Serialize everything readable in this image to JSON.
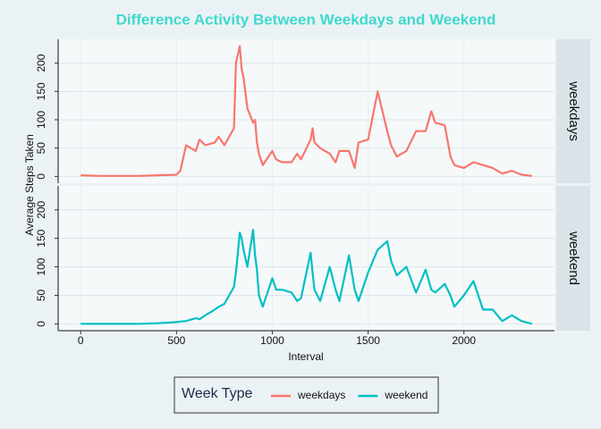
{
  "chart_data": {
    "type": "line",
    "title": "Difference Activity Between Weekdays and Weekend",
    "x_label": "Interval",
    "y_label": "Average Steps Taken",
    "legend_title": "Week Type",
    "facet": true,
    "grid": true,
    "x": [
      0,
      100,
      200,
      300,
      400,
      500,
      520,
      550,
      600,
      620,
      650,
      700,
      720,
      750,
      800,
      810,
      830,
      840,
      850,
      870,
      900,
      910,
      920,
      930,
      950,
      1000,
      1020,
      1050,
      1100,
      1130,
      1150,
      1200,
      1210,
      1220,
      1250,
      1300,
      1330,
      1350,
      1400,
      1430,
      1450,
      1500,
      1550,
      1600,
      1620,
      1650,
      1700,
      1750,
      1800,
      1830,
      1850,
      1900,
      1930,
      1950,
      2000,
      2050,
      2100,
      2150,
      2200,
      2250,
      2300,
      2355
    ],
    "series": [
      {
        "name": "weekdays",
        "color": "#F8766D",
        "values": [
          2,
          1,
          1,
          1,
          2,
          3,
          10,
          55,
          45,
          65,
          55,
          60,
          70,
          55,
          85,
          200,
          230,
          190,
          175,
          120,
          95,
          100,
          60,
          40,
          20,
          45,
          30,
          25,
          25,
          40,
          30,
          65,
          85,
          60,
          50,
          40,
          25,
          45,
          45,
          15,
          60,
          65,
          150,
          80,
          55,
          35,
          45,
          80,
          80,
          115,
          95,
          90,
          35,
          20,
          15,
          25,
          20,
          15,
          5,
          10,
          3,
          1
        ]
      },
      {
        "name": "weekend",
        "color": "#00BFC4",
        "values": [
          0,
          0,
          0,
          0,
          1,
          3,
          4,
          5,
          10,
          8,
          15,
          25,
          30,
          35,
          65,
          90,
          160,
          150,
          130,
          100,
          165,
          120,
          95,
          50,
          30,
          80,
          60,
          60,
          55,
          40,
          45,
          125,
          90,
          60,
          40,
          100,
          60,
          40,
          120,
          60,
          40,
          90,
          130,
          145,
          110,
          85,
          100,
          55,
          95,
          60,
          55,
          70,
          50,
          30,
          50,
          75,
          25,
          25,
          5,
          15,
          5,
          0
        ]
      }
    ],
    "xlim": [
      -117.75,
      2472.75
    ],
    "xticks": [
      0,
      500,
      1000,
      1500,
      2000
    ],
    "ylim": [
      -12,
      242
    ],
    "yticks": [
      0,
      50,
      100,
      150,
      200
    ]
  }
}
